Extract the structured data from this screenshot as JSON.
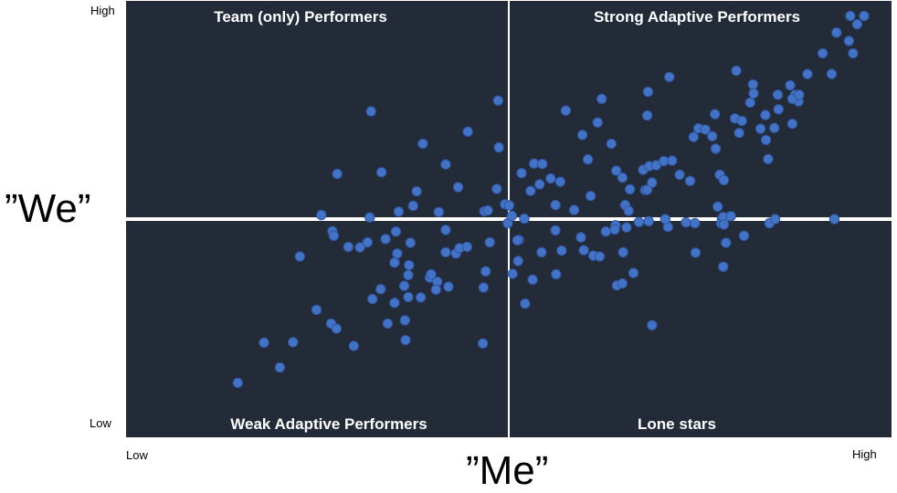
{
  "chart_data": {
    "type": "scatter",
    "title": "",
    "xlabel": "”Me”",
    "ylabel": "”We”",
    "x_ticks": {
      "low": "Low",
      "high": "High"
    },
    "y_ticks": {
      "low": "Low",
      "high": "High"
    },
    "xlim": [
      0,
      1
    ],
    "ylim": [
      0,
      1
    ],
    "divider": {
      "x": 0.5,
      "y": 0.5
    },
    "quadrant_labels": {
      "top_left": "Team (only) Performers",
      "top_right": "Strong Adaptive Performers",
      "bottom_left": "Weak Adaptive Performers",
      "bottom_right": "Lone stars"
    },
    "colors": {
      "background": "#232a38",
      "point_fill": "#4472c4",
      "point_stroke": "#2f55a0",
      "divider": "#ffffff",
      "quadrant_text": "#ffffff"
    },
    "points": [
      [
        0.093,
        0.105
      ],
      [
        0.131,
        0.202
      ],
      [
        0.154,
        0.142
      ],
      [
        0.173,
        0.203
      ],
      [
        0.183,
        0.41
      ],
      [
        0.207,
        0.281
      ],
      [
        0.214,
        0.51
      ],
      [
        0.228,
        0.248
      ],
      [
        0.23,
        0.471
      ],
      [
        0.232,
        0.46
      ],
      [
        0.236,
        0.236
      ],
      [
        0.237,
        0.609
      ],
      [
        0.253,
        0.433
      ],
      [
        0.261,
        0.194
      ],
      [
        0.27,
        0.432
      ],
      [
        0.281,
        0.444
      ],
      [
        0.286,
        0.76
      ],
      [
        0.284,
        0.504
      ],
      [
        0.288,
        0.307
      ],
      [
        0.3,
        0.331
      ],
      [
        0.301,
        0.613
      ],
      [
        0.307,
        0.452
      ],
      [
        0.31,
        0.248
      ],
      [
        0.32,
        0.298
      ],
      [
        0.32,
        0.395
      ],
      [
        0.322,
        0.47
      ],
      [
        0.326,
        0.518
      ],
      [
        0.324,
        0.417
      ],
      [
        0.334,
        0.339
      ],
      [
        0.336,
        0.208
      ],
      [
        0.335,
        0.256
      ],
      [
        0.34,
        0.312
      ],
      [
        0.34,
        0.365
      ],
      [
        0.343,
        0.443
      ],
      [
        0.347,
        0.532
      ],
      [
        0.341,
        0.389
      ],
      [
        0.352,
        0.567
      ],
      [
        0.358,
        0.311
      ],
      [
        0.361,
        0.682
      ],
      [
        0.371,
        0.359
      ],
      [
        0.373,
        0.367
      ],
      [
        0.382,
        0.349
      ],
      [
        0.384,
        0.517
      ],
      [
        0.38,
        0.33
      ],
      [
        0.394,
        0.632
      ],
      [
        0.394,
        0.42
      ],
      [
        0.394,
        0.474
      ],
      [
        0.398,
        0.337
      ],
      [
        0.409,
        0.417
      ],
      [
        0.414,
        0.43
      ],
      [
        0.426,
        0.711
      ],
      [
        0.412,
        0.577
      ],
      [
        0.425,
        0.433
      ],
      [
        0.449,
        0.335
      ],
      [
        0.448,
        0.2
      ],
      [
        0.45,
        0.519
      ],
      [
        0.455,
        0.521
      ],
      [
        0.452,
        0.374
      ],
      [
        0.458,
        0.444
      ],
      [
        0.468,
        0.573
      ],
      [
        0.47,
        0.786
      ],
      [
        0.471,
        0.673
      ],
      [
        0.48,
        0.536
      ],
      [
        0.486,
        0.533
      ],
      [
        0.491,
        0.368
      ],
      [
        0.484,
        0.49
      ],
      [
        0.49,
        0.508
      ],
      [
        0.5,
        0.45
      ],
      [
        0.498,
        0.449
      ],
      [
        0.499,
        0.399
      ],
      [
        0.504,
        0.611
      ],
      [
        0.508,
        0.501
      ],
      [
        0.509,
        0.296
      ],
      [
        0.517,
        0.568
      ],
      [
        0.522,
        0.634
      ],
      [
        0.52,
        0.354
      ],
      [
        0.534,
        0.633
      ],
      [
        0.533,
        0.42
      ],
      [
        0.53,
        0.584
      ],
      [
        0.546,
        0.598
      ],
      [
        0.553,
        0.473
      ],
      [
        0.553,
        0.534
      ],
      [
        0.554,
        0.367
      ],
      [
        0.562,
        0.424
      ],
      [
        0.56,
        0.59
      ],
      [
        0.568,
        0.762
      ],
      [
        0.58,
        0.522
      ],
      [
        0.59,
        0.456
      ],
      [
        0.594,
        0.425
      ],
      [
        0.592,
        0.703
      ],
      [
        0.6,
        0.644
      ],
      [
        0.604,
        0.556
      ],
      [
        0.608,
        0.412
      ],
      [
        0.614,
        0.733
      ],
      [
        0.617,
        0.41
      ],
      [
        0.62,
        0.79
      ],
      [
        0.626,
        0.47
      ],
      [
        0.634,
        0.682
      ],
      [
        0.64,
        0.485
      ],
      [
        0.641,
        0.617
      ],
      [
        0.639,
        0.475
      ],
      [
        0.642,
        0.34
      ],
      [
        0.65,
        0.6
      ],
      [
        0.654,
        0.534
      ],
      [
        0.651,
        0.42
      ],
      [
        0.656,
        0.48
      ],
      [
        0.65,
        0.345
      ],
      [
        0.659,
        0.52
      ],
      [
        0.661,
        0.572
      ],
      [
        0.666,
        0.37
      ],
      [
        0.674,
        0.493
      ],
      [
        0.683,
        0.57
      ],
      [
        0.68,
        0.619
      ],
      [
        0.686,
        0.571
      ],
      [
        0.688,
        0.495
      ],
      [
        0.687,
        0.807
      ],
      [
        0.686,
        0.75
      ],
      [
        0.689,
        0.628
      ],
      [
        0.693,
        0.244
      ],
      [
        0.693,
        0.588
      ],
      [
        0.699,
        0.63
      ],
      [
        0.71,
        0.64
      ],
      [
        0.716,
        0.481
      ],
      [
        0.718,
        0.843
      ],
      [
        0.712,
        0.5
      ],
      [
        0.722,
        0.641
      ],
      [
        0.733,
        0.607
      ],
      [
        0.742,
        0.492
      ],
      [
        0.748,
        0.592
      ],
      [
        0.756,
        0.419
      ],
      [
        0.755,
        0.49
      ],
      [
        0.753,
        0.698
      ],
      [
        0.76,
        0.719
      ],
      [
        0.77,
        0.716
      ],
      [
        0.78,
        0.7
      ],
      [
        0.784,
        0.753
      ],
      [
        0.785,
        0.67
      ],
      [
        0.788,
        0.53
      ],
      [
        0.791,
        0.607
      ],
      [
        0.793,
        0.49
      ],
      [
        0.794,
        0.5
      ],
      [
        0.796,
        0.385
      ],
      [
        0.796,
        0.505
      ],
      [
        0.797,
        0.594
      ],
      [
        0.797,
        0.487
      ],
      [
        0.815,
        0.858
      ],
      [
        0.813,
        0.743
      ],
      [
        0.8,
        0.443
      ],
      [
        0.826,
        0.46
      ],
      [
        0.807,
        0.507
      ],
      [
        0.819,
        0.708
      ],
      [
        0.823,
        0.737
      ],
      [
        0.835,
        0.781
      ],
      [
        0.839,
        0.825
      ],
      [
        0.84,
        0.803
      ],
      [
        0.85,
        0.718
      ],
      [
        0.857,
        0.751
      ],
      [
        0.858,
        0.691
      ],
      [
        0.861,
        0.645
      ],
      [
        0.863,
        0.49
      ],
      [
        0.871,
        0.5
      ],
      [
        0.87,
        0.72
      ],
      [
        0.875,
        0.8
      ],
      [
        0.876,
        0.765
      ],
      [
        0.893,
        0.823
      ],
      [
        0.905,
        0.784
      ],
      [
        0.9,
        0.8
      ],
      [
        0.896,
        0.79
      ],
      [
        0.906,
        0.8
      ],
      [
        0.896,
        0.73
      ],
      [
        0.918,
        0.85
      ],
      [
        0.94,
        0.9
      ],
      [
        0.957,
        0.5
      ],
      [
        0.96,
        0.95
      ],
      [
        0.978,
        0.93
      ],
      [
        0.984,
        0.9
      ],
      [
        0.99,
        0.97
      ],
      [
        0.953,
        0.85
      ],
      [
        0.98,
        0.99
      ],
      [
        1.0,
        0.99
      ]
    ]
  }
}
